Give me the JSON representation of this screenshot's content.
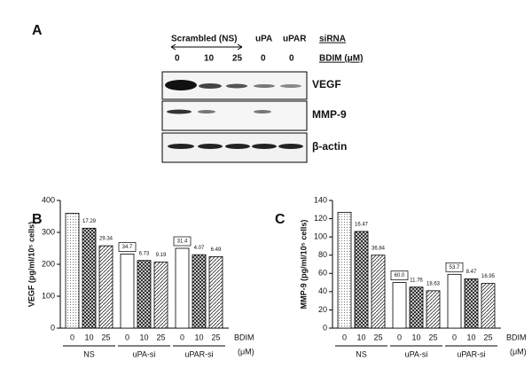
{
  "panel_a": {
    "label": "A",
    "header": {
      "scrambled": "Scrambled (NS)",
      "upa": "uPA",
      "upar": "uPAR",
      "sirna": "siRNA",
      "bdim": "BDIM (μM)"
    },
    "lanes": [
      "0",
      "10",
      "25",
      "0",
      "0"
    ],
    "rows": [
      "VEGF",
      "MMP-9",
      "β-actin"
    ]
  },
  "chart_data": [
    {
      "type": "bar",
      "panel": "B",
      "y_label": "VEGF (pg/ml/10⁵ cells)",
      "categories": [
        "0",
        "10",
        "25",
        "0",
        "10",
        "25",
        "0",
        "10",
        "25"
      ],
      "groups": [
        "NS",
        "uPA-si",
        "uPAR-si"
      ],
      "x_label": "BDIM",
      "x_unit": "(μM)",
      "values": [
        360,
        313,
        258,
        232,
        212,
        207,
        250,
        230,
        224
      ],
      "annotations": [
        null,
        "17.29",
        "29.34",
        "34.7",
        "6.73",
        "9.19",
        "31.4",
        "4.07",
        "6.49"
      ],
      "ylim": [
        0,
        400
      ],
      "yticks": [
        0,
        100,
        200,
        300,
        400
      ]
    },
    {
      "type": "bar",
      "panel": "C",
      "y_label": "MMP-9 (pg/ml/10⁵ cells)",
      "categories": [
        "0",
        "10",
        "25",
        "0",
        "10",
        "25",
        "0",
        "10",
        "25"
      ],
      "groups": [
        "NS",
        "uPA-si",
        "uPAR-si"
      ],
      "x_label": "BDIM",
      "x_unit": "(μM)",
      "values": [
        127,
        106,
        80,
        50,
        45,
        41,
        59,
        54,
        49
      ],
      "annotations": [
        null,
        "16.47",
        "36.84",
        "60.0",
        "11.76",
        "18.63",
        "53.7",
        "8.47",
        "16.95"
      ],
      "ylim": [
        0,
        140
      ],
      "yticks": [
        0,
        20,
        40,
        60,
        80,
        100,
        120,
        140
      ]
    }
  ]
}
